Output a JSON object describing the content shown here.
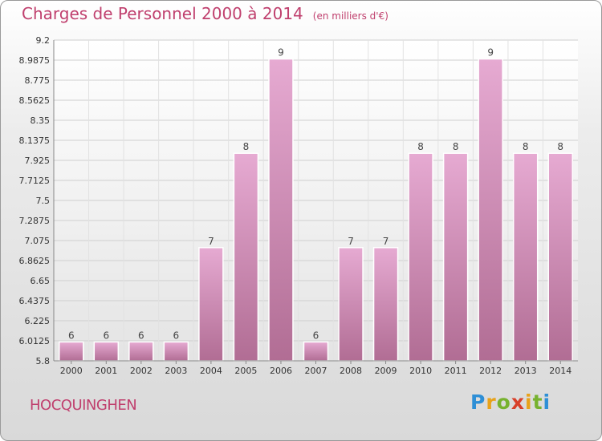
{
  "header": {
    "title": "Charges de Personnel 2000 à 2014",
    "subtitle": "(en milliers d'€)"
  },
  "commune": "HOCQUINGHEN",
  "logo": {
    "text": "Proxiti"
  },
  "colors": {
    "bar_top": "#e4a8cf",
    "bar_bottom": "#b87098",
    "title": "#c0406e"
  },
  "chart_data": {
    "type": "bar",
    "title": "Charges de Personnel 2000 à 2014",
    "subtitle": "(en milliers d'€)",
    "categories": [
      "2000",
      "2001",
      "2002",
      "2003",
      "2004",
      "2005",
      "2006",
      "2007",
      "2008",
      "2009",
      "2010",
      "2011",
      "2012",
      "2013",
      "2014"
    ],
    "values": [
      6,
      6,
      6,
      6,
      7,
      8,
      9,
      6,
      7,
      7,
      8,
      8,
      9,
      8,
      8
    ],
    "ylim": [
      5.8,
      9.2
    ],
    "yticks": [
      "9.2",
      "8.9875",
      "8.775",
      "8.5625",
      "8.35",
      "8.1375",
      "7.925",
      "7.7125",
      "7.5",
      "7.2875",
      "7.075",
      "6.8625",
      "6.65",
      "6.4375",
      "6.225",
      "6.0125",
      "5.8"
    ],
    "grid": true
  }
}
